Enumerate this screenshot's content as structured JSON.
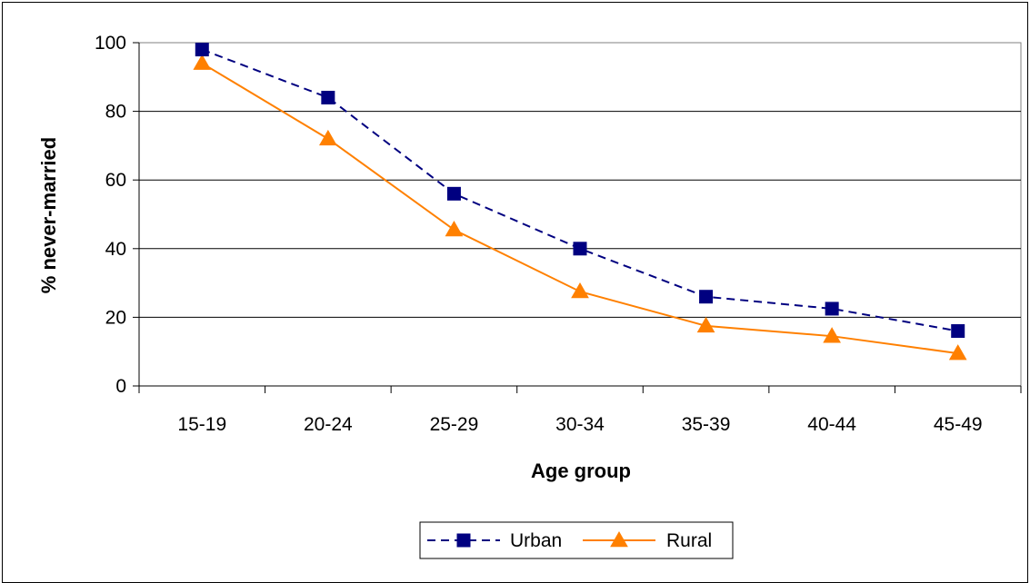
{
  "chart_data": {
    "type": "line",
    "title": "",
    "xlabel": "Age group",
    "ylabel": "% never-married",
    "categories": [
      "15-19",
      "20-24",
      "25-29",
      "30-34",
      "35-39",
      "40-44",
      "45-49"
    ],
    "ylim": [
      0,
      100
    ],
    "yticks": [
      0,
      20,
      40,
      60,
      80,
      100
    ],
    "grid": true,
    "legend_position": "bottom",
    "series": [
      {
        "name": "Urban",
        "values": [
          98,
          84,
          56,
          40,
          26,
          22.5,
          16
        ],
        "color": "#000080",
        "line_style": "dashed",
        "marker": "square"
      },
      {
        "name": "Rural",
        "values": [
          94,
          72,
          45.5,
          27.5,
          17.5,
          14.5,
          9.5
        ],
        "color": "#FF8000",
        "line_style": "solid",
        "marker": "triangle"
      }
    ]
  }
}
